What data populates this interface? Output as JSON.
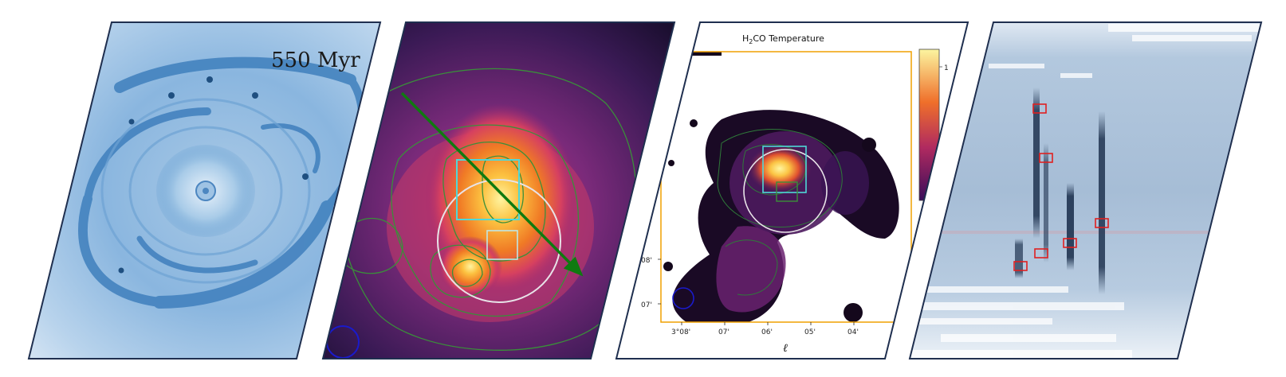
{
  "panels": {
    "simulation": {
      "time_label": "550 Myr"
    },
    "temperature": {
      "title": "H",
      "title_sub": "2",
      "title_rest": "CO Temperature",
      "x_axis_label": "ℓ",
      "x_ticks": [
        "3°08'",
        "07'",
        "06'",
        "05'",
        "04'"
      ],
      "y_ticks": [
        "08'",
        "07'"
      ],
      "colorbar_tick": "1"
    }
  },
  "colors": {
    "frame": "#1f2f4f",
    "simulation_blue": "#4d86c0",
    "arrow_green": "#0f7a10",
    "contour_green": "#3a8f3a",
    "box_cyan": "#4fd8d8",
    "circle_white": "#e8e3e8",
    "beam_blue": "#1a1acc",
    "marker_red": "#e02020",
    "axes_orange": "#f0a000"
  }
}
